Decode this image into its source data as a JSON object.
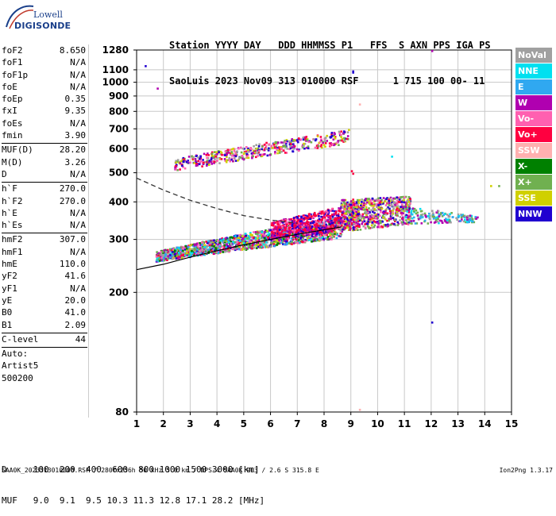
{
  "logo": {
    "line1": "Lowell",
    "line2": "DIGISONDE"
  },
  "header": {
    "line1": "Station YYYY DAY   DDD HHMMSS P1   FFS  S AXN PPS IGA PS",
    "line2": "SaoLuis 2023 Nov09 313 010000 RSF      1 715 100 00- 11"
  },
  "params": {
    "group1": [
      {
        "label": "foF2",
        "value": "8.650"
      },
      {
        "label": "foF1",
        "value": "N/A"
      },
      {
        "label": "foF1p",
        "value": "N/A"
      },
      {
        "label": "foE",
        "value": "N/A"
      },
      {
        "label": "foEp",
        "value": "0.35"
      },
      {
        "label": "fxI",
        "value": "9.35"
      },
      {
        "label": "foEs",
        "value": "N/A"
      },
      {
        "label": "fmin",
        "value": "3.90"
      }
    ],
    "group2": [
      {
        "label": "MUF(D)",
        "value": "28.20"
      },
      {
        "label": "M(D)",
        "value": "3.26"
      },
      {
        "label": "D",
        "value": "N/A"
      }
    ],
    "group3": [
      {
        "label": "h`F",
        "value": "270.0"
      },
      {
        "label": "h`F2",
        "value": "270.0"
      },
      {
        "label": "h`E",
        "value": "N/A"
      },
      {
        "label": "h`Es",
        "value": "N/A"
      }
    ],
    "group4": [
      {
        "label": "hmF2",
        "value": "307.0"
      },
      {
        "label": "hmF1",
        "value": "N/A"
      },
      {
        "label": "hmE",
        "value": "110.0"
      },
      {
        "label": "yF2",
        "value": "41.6"
      },
      {
        "label": "yF1",
        "value": "N/A"
      },
      {
        "label": "yE",
        "value": "20.0"
      },
      {
        "label": "B0",
        "value": "41.0"
      },
      {
        "label": "B1",
        "value": "2.09"
      }
    ],
    "group5": [
      {
        "label": "C-level",
        "value": "44"
      }
    ],
    "auto": [
      "Auto:",
      "Artist5",
      "500200"
    ]
  },
  "legend": [
    {
      "label": "NoVal",
      "color": "#a0a0a0"
    },
    {
      "label": "NNE",
      "color": "#00e0f0"
    },
    {
      "label": "E",
      "color": "#30a8f0"
    },
    {
      "label": "W",
      "color": "#b000b0"
    },
    {
      "label": "Vo-",
      "color": "#ff60b0"
    },
    {
      "label": "Vo+",
      "color": "#ff0040"
    },
    {
      "label": "SSW",
      "color": "#ffb0b0"
    },
    {
      "label": "X-",
      "color": "#008000"
    },
    {
      "label": "X+",
      "color": "#70b050"
    },
    {
      "label": "SSE",
      "color": "#d0d000"
    },
    {
      "label": "NNW",
      "color": "#2000d0"
    }
  ],
  "bottom": {
    "line1": "D     100  200  400  600  800 1000 1500 3000 [km]",
    "line2": "MUF   9.0  9.1  9.5 10.3 11.3 12.8 17.1 28.2 [MHz]"
  },
  "footer": {
    "left": "SAA0K_2023313010000.RSF / 280fx256h 50 kHz 5.0 km / DPS-4 SAA0K 903 / 2.6 S 315.8 E",
    "right": "Ion2Png 1.3.17"
  },
  "chart_data": {
    "type": "scatter",
    "x_ticks": [
      "1",
      "2",
      "3",
      "4",
      "5",
      "6",
      "7",
      "8",
      "9",
      "10",
      "11",
      "12",
      "13",
      "14",
      "15"
    ],
    "y_ticks": [
      "80",
      "200",
      "300",
      "400",
      "500",
      "600",
      "700",
      "800",
      "900",
      "1000",
      "1100",
      "1280"
    ],
    "xlim": [
      1,
      15
    ],
    "ylim": [
      80,
      1280
    ],
    "y_scale": "log",
    "grid": true,
    "legend_placement": "right",
    "dashed_curve": [
      [
        1.0,
        480
      ],
      [
        2,
        438
      ],
      [
        3,
        405
      ],
      [
        4,
        380
      ],
      [
        5,
        360
      ],
      [
        6,
        348
      ],
      [
        7,
        340
      ]
    ],
    "solid_curve": [
      [
        1.0,
        238
      ],
      [
        2,
        248
      ],
      [
        3,
        262
      ],
      [
        4,
        275
      ],
      [
        5,
        288
      ],
      [
        6,
        300
      ],
      [
        7,
        312
      ],
      [
        8,
        323
      ],
      [
        8.65,
        330
      ]
    ],
    "clusters": [
      {
        "name": "o-trace",
        "xmin": 1.7,
        "xmax": 8.6,
        "ylo_start": 255,
        "ylo_end": 305,
        "yhi_start": 275,
        "yhi_end": 360,
        "n": 1700,
        "colors": [
          "#2000d0",
          "#b000b0",
          "#ff0040",
          "#00e0f0",
          "#30a8f0",
          "#70b050",
          "#d0d000",
          "#008000",
          "#ff60b0",
          "#a0a0a0"
        ]
      },
      {
        "name": "o-trace-red",
        "xmin": 6.0,
        "xmax": 9.3,
        "ylo_start": 300,
        "ylo_end": 330,
        "yhi_start": 345,
        "yhi_end": 400,
        "n": 700,
        "colors": [
          "#ff0040",
          "#ff0040",
          "#b000b0",
          "#ff60b0",
          "#2000d0"
        ]
      },
      {
        "name": "high-freq",
        "xmin": 8.6,
        "xmax": 11.2,
        "ylo_start": 320,
        "ylo_end": 340,
        "yhi_start": 410,
        "yhi_end": 420,
        "n": 650,
        "colors": [
          "#ff0040",
          "#b000b0",
          "#ff60b0",
          "#2000d0",
          "#70b050",
          "#a0a0a0",
          "#d0d000"
        ]
      },
      {
        "name": "tail",
        "xmin": 11.0,
        "xmax": 13.7,
        "ylo_start": 340,
        "ylo_end": 345,
        "yhi_start": 390,
        "yhi_end": 360,
        "n": 180,
        "colors": [
          "#00e0f0",
          "#30a8f0",
          "#a0a0a0",
          "#70b050",
          "#b000b0"
        ]
      },
      {
        "name": "second-hop",
        "xmin": 2.4,
        "xmax": 8.9,
        "ylo_start": 510,
        "ylo_end": 630,
        "yhi_start": 560,
        "yhi_end": 700,
        "n": 500,
        "colors": [
          "#a0a0a0",
          "#2000d0",
          "#b000b0",
          "#ff0040",
          "#70b050",
          "#d0d000",
          "#ff60b0"
        ]
      }
    ],
    "points": [
      {
        "x": 1.3,
        "y": 1140,
        "c": "#2000d0"
      },
      {
        "x": 1.75,
        "y": 960,
        "c": "#b000b0"
      },
      {
        "x": 9.05,
        "y": 1085,
        "c": "#2000d0"
      },
      {
        "x": 9.05,
        "y": 1095,
        "c": "#2000d0"
      },
      {
        "x": 12.0,
        "y": 1280,
        "c": "#b000b0"
      },
      {
        "x": 9.3,
        "y": 850,
        "c": "#ffb0b0"
      },
      {
        "x": 10.5,
        "y": 570,
        "c": "#00e0f0"
      },
      {
        "x": 9.0,
        "y": 510,
        "c": "#ff0040"
      },
      {
        "x": 9.05,
        "y": 500,
        "c": "#ff0040"
      },
      {
        "x": 12.0,
        "y": 160,
        "c": "#2000d0"
      },
      {
        "x": 9.3,
        "y": 82,
        "c": "#ffb0b0"
      },
      {
        "x": 14.2,
        "y": 455,
        "c": "#d0d000"
      },
      {
        "x": 14.5,
        "y": 455,
        "c": "#70b050"
      }
    ]
  }
}
